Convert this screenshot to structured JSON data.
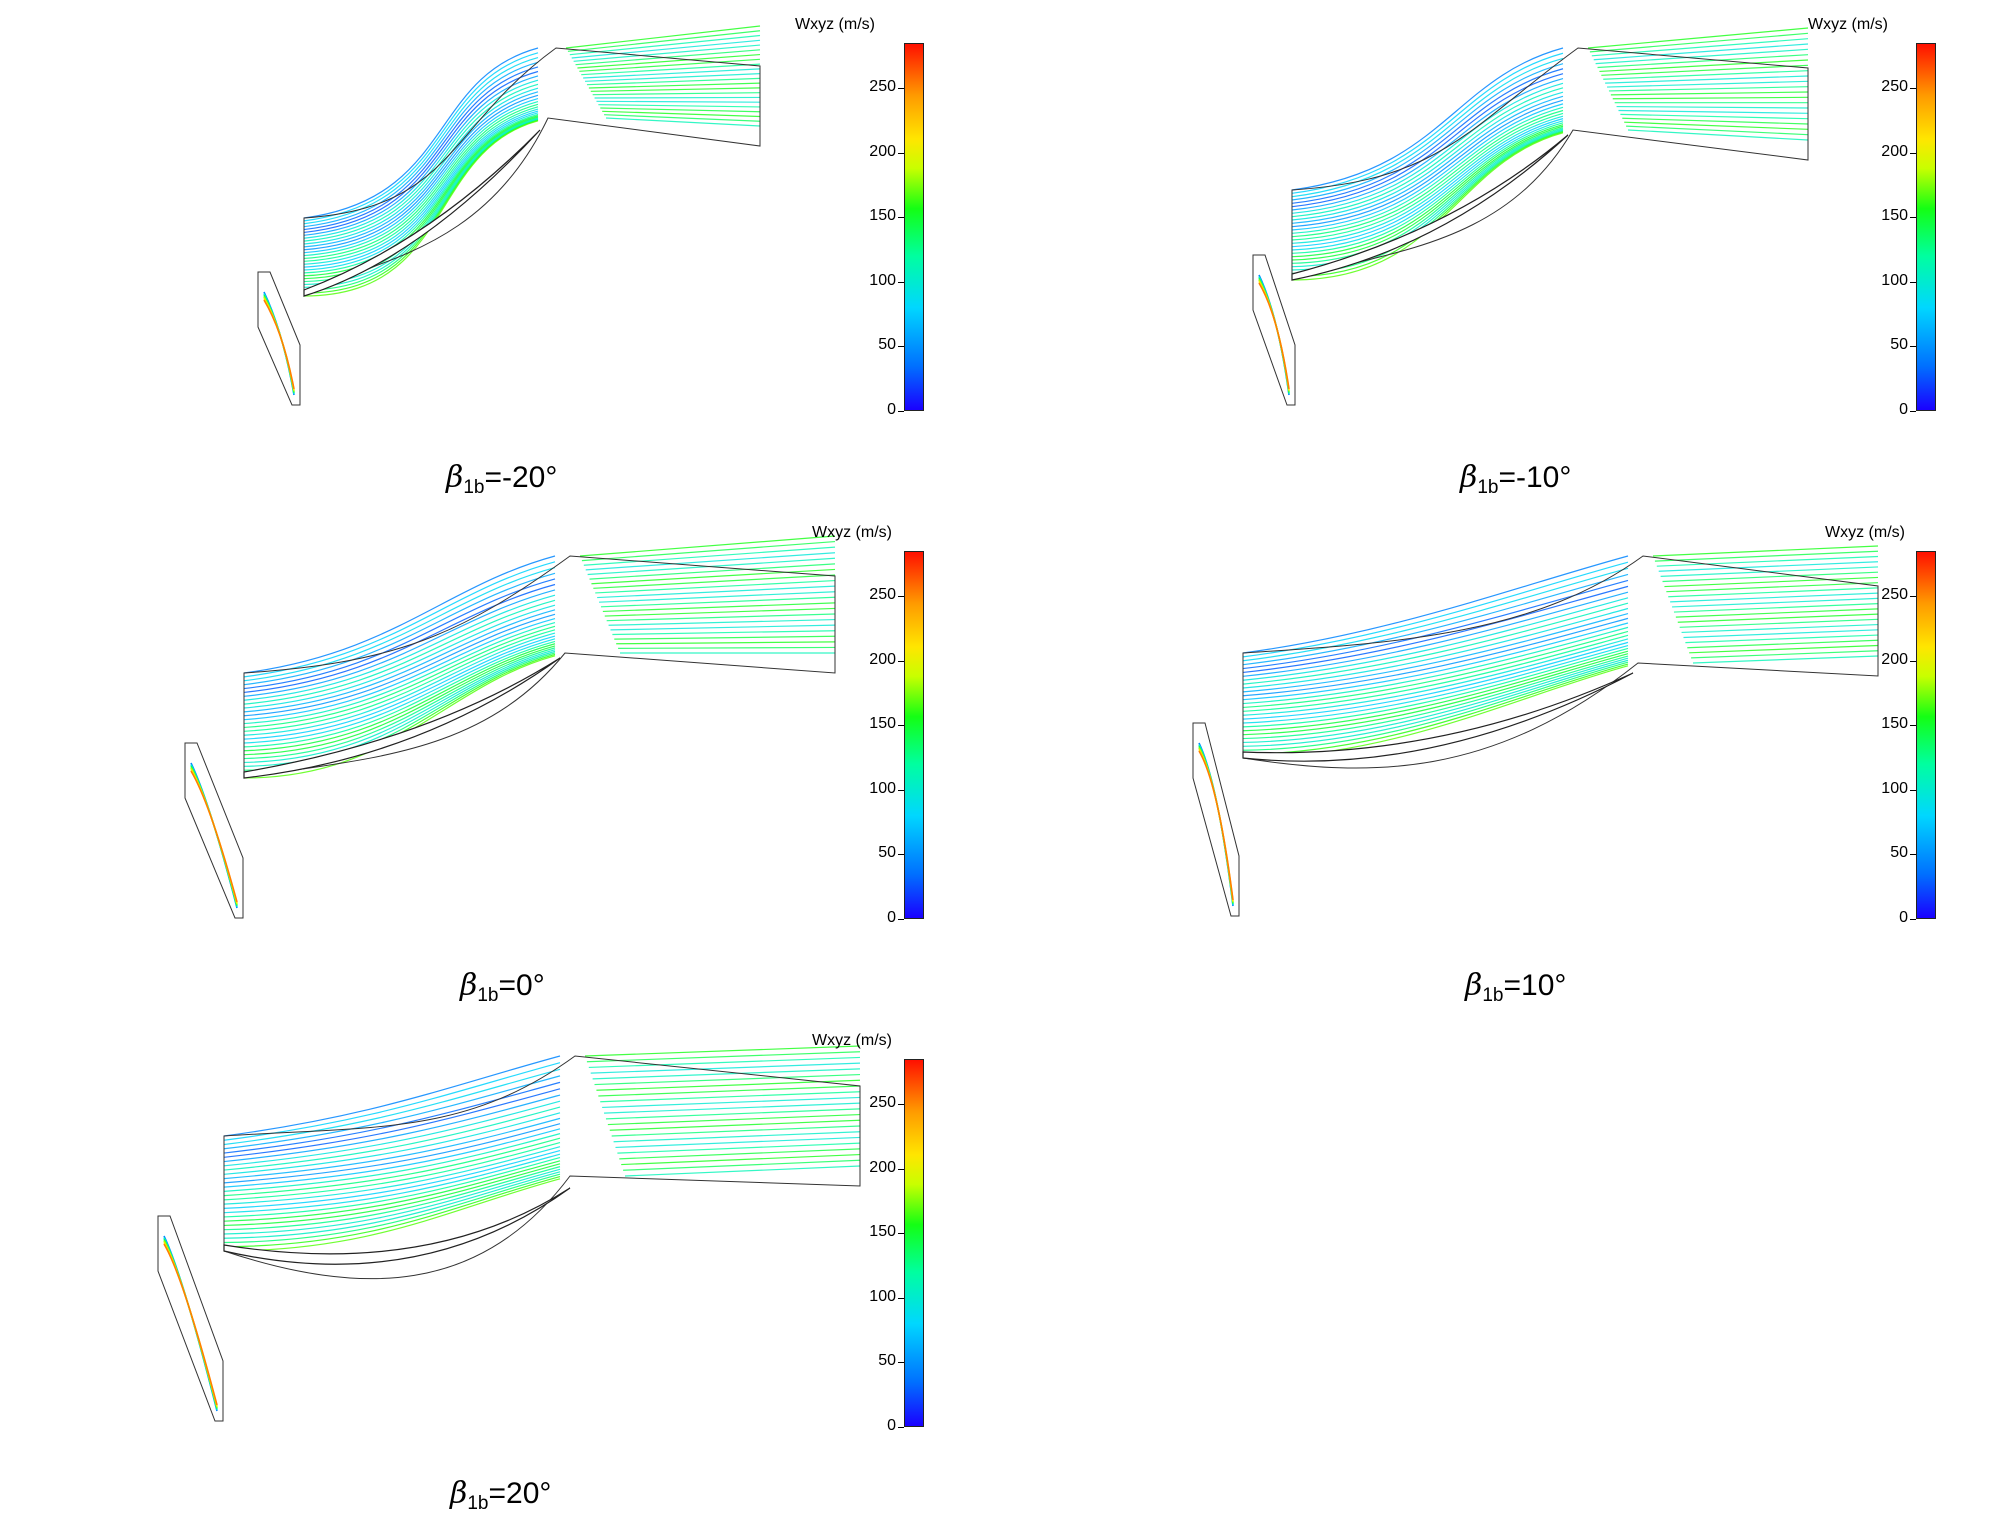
{
  "legend": {
    "title": "Wxyz (m/s)",
    "ticks": [
      "0",
      "50",
      "100",
      "150",
      "200",
      "250"
    ],
    "tick_values": [
      0,
      50,
      100,
      150,
      200,
      250
    ],
    "range": [
      0,
      285
    ],
    "colormap": [
      "#1a00ff",
      "#0070ff",
      "#00d7ff",
      "#00ffa0",
      "#14ff14",
      "#c8ff00",
      "#ffe600",
      "#ff9a00",
      "#ff1000"
    ]
  },
  "panels": [
    {
      "beta": "β",
      "sub": "1b",
      "value": "=-20°"
    },
    {
      "beta": "β",
      "sub": "1b",
      "value": "=-10°"
    },
    {
      "beta": "β",
      "sub": "1b",
      "value": "=0°"
    },
    {
      "beta": "β",
      "sub": "1b",
      "value": "=10°"
    },
    {
      "beta": "β",
      "sub": "1b",
      "value": "=20°"
    }
  ]
}
